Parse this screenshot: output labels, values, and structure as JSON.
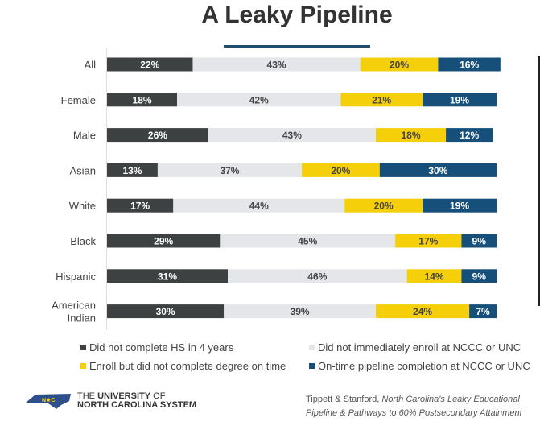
{
  "chart_data": {
    "type": "bar",
    "orientation": "horizontal",
    "stacked": true,
    "title": "A Leaky Pipeline",
    "categories": [
      "All",
      "Female",
      "Male",
      "Asian",
      "White",
      "Black",
      "Hispanic",
      "American Indian"
    ],
    "series": [
      {
        "name": "Did not complete HS in 4 years",
        "color": "#3d4142",
        "values": [
          22,
          18,
          26,
          13,
          17,
          29,
          31,
          30
        ]
      },
      {
        "name": "Did not immediately enroll at NCCC or UNC",
        "color": "#e4e6ea",
        "values": [
          43,
          42,
          43,
          37,
          44,
          45,
          46,
          39
        ]
      },
      {
        "name": "Enroll but did not complete degree on time",
        "color": "#f5cf0a",
        "values": [
          20,
          21,
          18,
          20,
          20,
          17,
          14,
          24
        ]
      },
      {
        "name": "On-time pipeline completion at NCCC or UNC",
        "color": "#16507a",
        "values": [
          16,
          19,
          12,
          30,
          19,
          9,
          9,
          7
        ]
      }
    ],
    "legend_position": "bottom",
    "grid": false
  },
  "logo": {
    "line1_pre": "THE ",
    "line1_bold": "UNIVERSITY",
    "line1_post": " OF",
    "line2": "NORTH CAROLINA SYSTEM",
    "badge": "N★C"
  },
  "citation": {
    "authors": "Tippett & Stanford, ",
    "title_line1": "North Carolina's Leaky Educational",
    "title_line2": "Pipeline & Pathways to 60% Postsecondary Attainment"
  }
}
